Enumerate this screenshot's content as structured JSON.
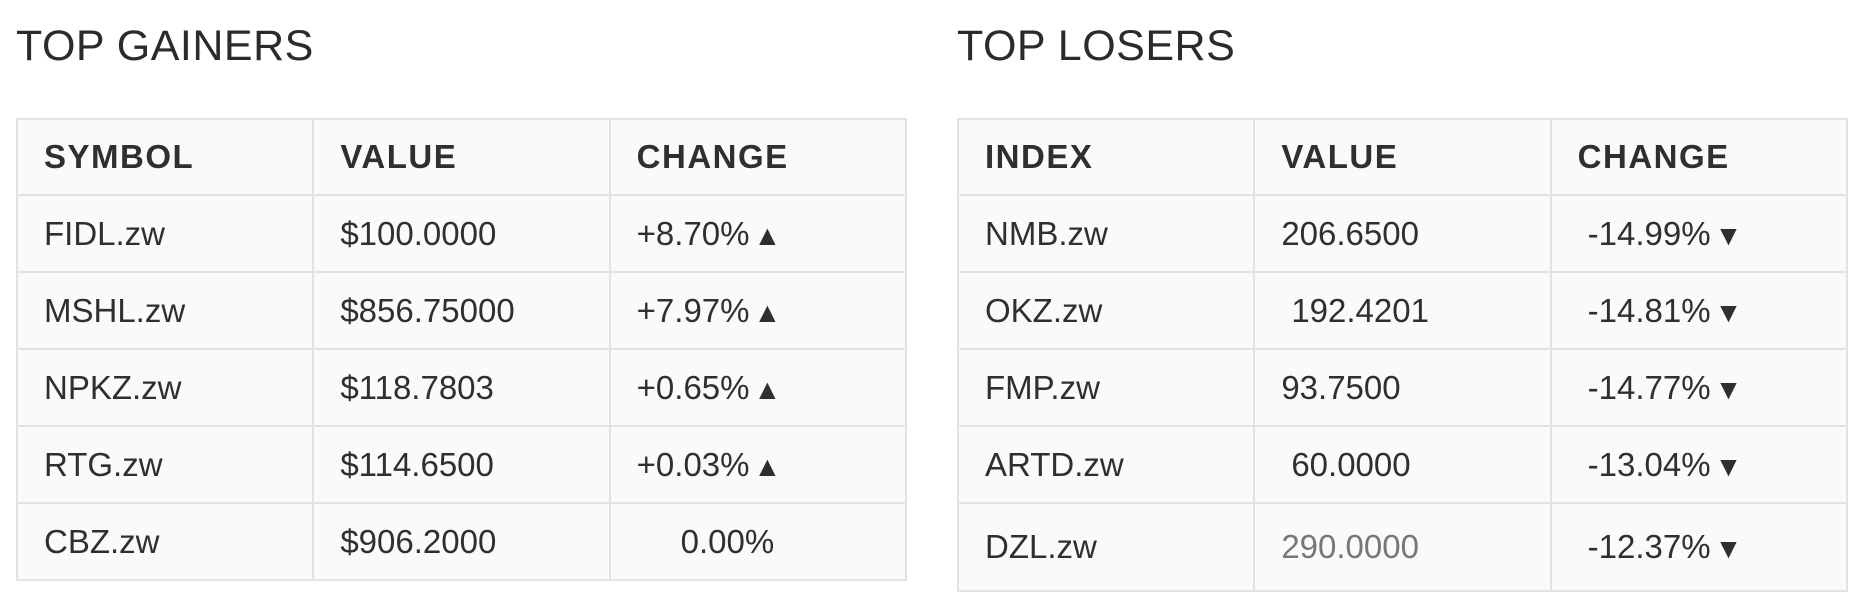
{
  "gainers": {
    "title": "TOP GAINERS",
    "headers": [
      "SYMBOL",
      "VALUE",
      "CHANGE"
    ],
    "rows": [
      {
        "symbol": "FIDL.zw",
        "value": "$100.0000",
        "change": "+8.70%",
        "arrow": "▲"
      },
      {
        "symbol": "MSHL.zw",
        "value": "$856.75000",
        "change": "+7.97%",
        "arrow": "▲"
      },
      {
        "symbol": "NPKZ.zw",
        "value": "$118.7803",
        "change": "+0.65%",
        "arrow": "▲"
      },
      {
        "symbol": "RTG.zw",
        "value": "$114.6500",
        "change": "+0.03%",
        "arrow": "▲"
      },
      {
        "symbol": "CBZ.zw",
        "value": "$906.2000",
        "change": "0.00%",
        "arrow": ""
      }
    ]
  },
  "losers": {
    "title": "TOP LOSERS",
    "headers": [
      "INDEX",
      "VALUE",
      "CHANGE"
    ],
    "rows": [
      {
        "symbol": "NMB.zw",
        "value": "206.6500",
        "change": "-14.99%",
        "arrow": "▼"
      },
      {
        "symbol": "OKZ.zw",
        "value": "192.4201",
        "change": "-14.81%",
        "arrow": "▼"
      },
      {
        "symbol": "FMP.zw",
        "value": "93.7500",
        "change": "-14.77%",
        "arrow": "▼"
      },
      {
        "symbol": "ARTD.zw",
        "value": "60.0000",
        "change": "-13.04%",
        "arrow": "▼"
      },
      {
        "symbol": "DZL.zw",
        "value": "290.0000",
        "change": "-12.37%",
        "arrow": "▼"
      }
    ]
  },
  "colors": {
    "text": "#2f2f2f",
    "muted_value": "#777777",
    "border": "#e3e3e3",
    "table_bg": "#fafafa"
  },
  "icons": {
    "up": "triangle-up-icon",
    "down": "triangle-down-icon"
  }
}
